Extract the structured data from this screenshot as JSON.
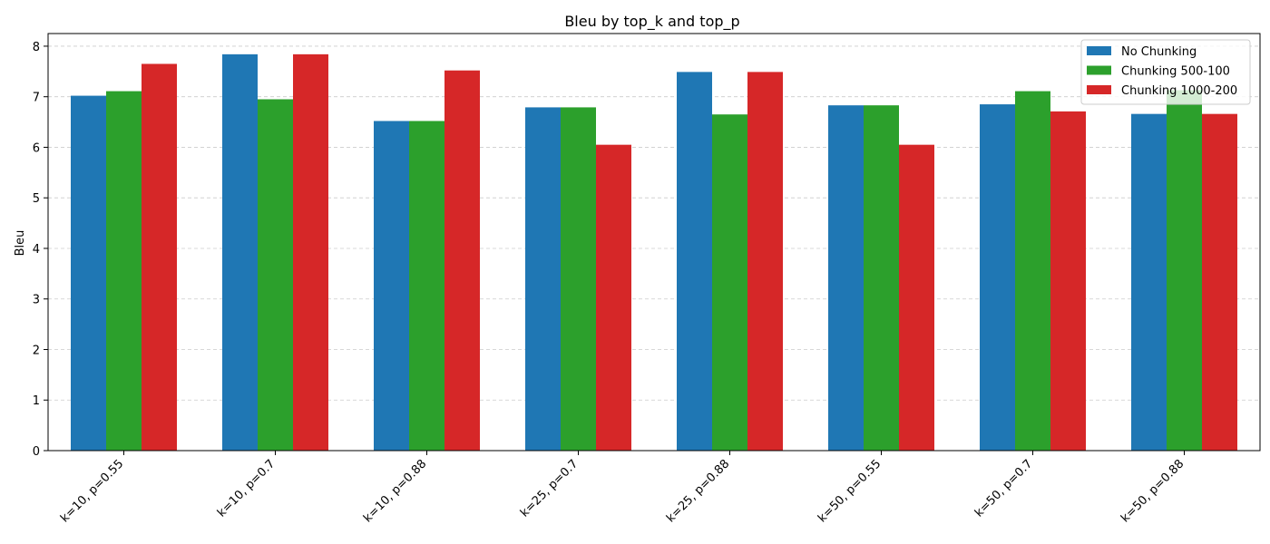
{
  "chart_data": {
    "type": "bar",
    "title": "Bleu by top_k and top_p",
    "xlabel": "",
    "ylabel": "Bleu",
    "ylim": [
      0,
      8.25
    ],
    "yticks": [
      0,
      1,
      2,
      3,
      4,
      5,
      6,
      7,
      8
    ],
    "grid": "y-dashed",
    "legend_position": "top-right",
    "categories": [
      "k=10, p=0.55",
      "k=10, p=0.7",
      "k=10, p=0.88",
      "k=25, p=0.7",
      "k=25, p=0.88",
      "k=50, p=0.55",
      "k=50, p=0.7",
      "k=50, p=0.88"
    ],
    "series": [
      {
        "name": "No Chunking",
        "color": "#1f77b4",
        "values": [
          7.02,
          7.84,
          6.52,
          6.79,
          7.49,
          6.83,
          6.85,
          6.66
        ]
      },
      {
        "name": "Chunking 500-100",
        "color": "#2ca02c",
        "values": [
          7.11,
          6.95,
          6.52,
          6.79,
          6.65,
          6.83,
          7.11,
          7.13
        ]
      },
      {
        "name": "Chunking 1000-200",
        "color": "#d62728",
        "values": [
          7.65,
          7.84,
          7.52,
          6.05,
          7.49,
          6.05,
          6.71,
          6.66
        ]
      }
    ]
  }
}
